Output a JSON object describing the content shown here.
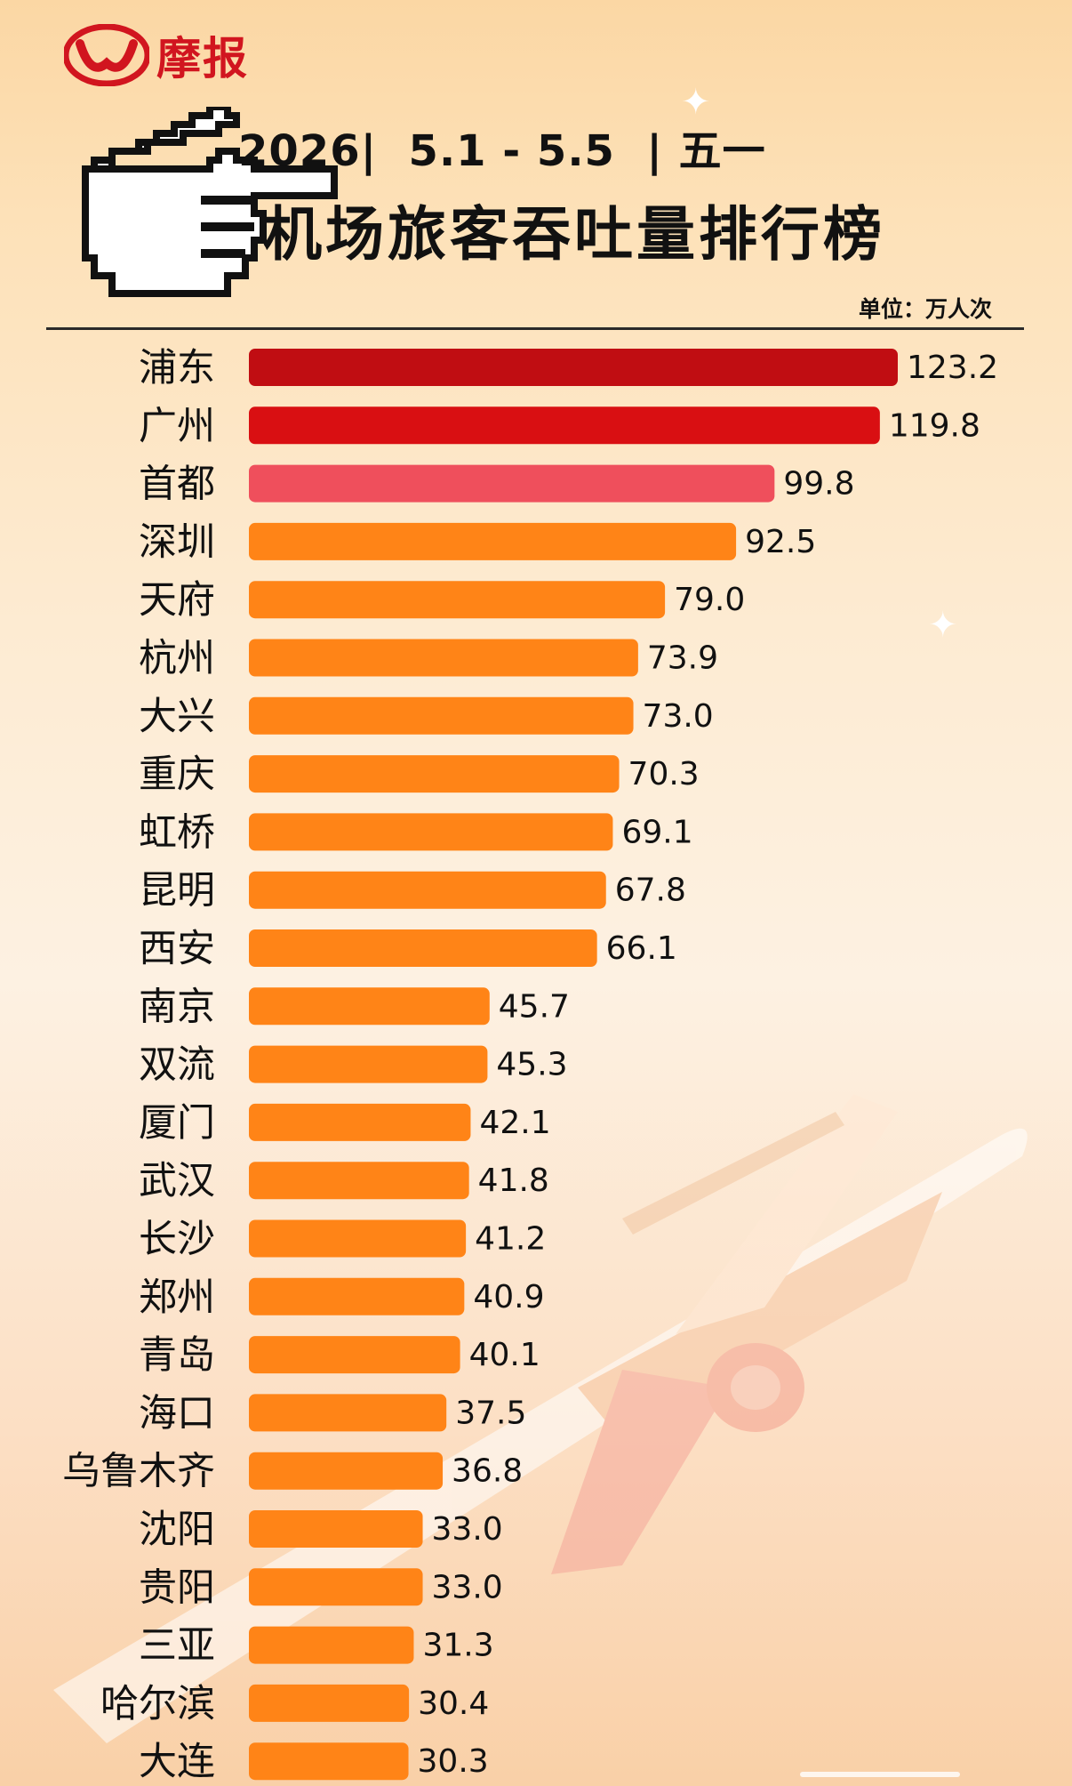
{
  "brand": {
    "name": "摩报"
  },
  "header": {
    "line1": "2026|  5.1 - 5.5  | 五一",
    "line2": "机场旅客吞吐量排行榜",
    "unit": "单位：万人次"
  },
  "colors": {
    "top1": "#c00d12",
    "top2": "#d90f12",
    "top3": "#ef4f5c",
    "rest": "#ff8417",
    "brand": "#d1151f"
  },
  "chart_data": {
    "type": "bar",
    "orientation": "horizontal",
    "categories": [
      "浦东",
      "广州",
      "首都",
      "深圳",
      "天府",
      "杭州",
      "大兴",
      "重庆",
      "虹桥",
      "昆明",
      "西安",
      "南京",
      "双流",
      "厦门",
      "武汉",
      "长沙",
      "郑州",
      "青岛",
      "海口",
      "乌鲁木齐",
      "沈阳",
      "贵阳",
      "三亚",
      "哈尔滨",
      "大连"
    ],
    "values": [
      123.2,
      119.8,
      99.8,
      92.5,
      79.0,
      73.9,
      73.0,
      70.3,
      69.1,
      67.8,
      66.1,
      45.7,
      45.3,
      42.1,
      41.8,
      41.2,
      40.9,
      40.1,
      37.5,
      36.8,
      33.0,
      33.0,
      31.3,
      30.4,
      30.3
    ],
    "value_labels": [
      "123.2",
      "119.8",
      "99.8",
      "92.5",
      "79.0",
      "73.9",
      "73.0",
      "70.3",
      "69.1",
      "67.8",
      "66.1",
      "45.7",
      "45.3",
      "42.1",
      "41.8",
      "41.2",
      "40.9",
      "40.1",
      "37.5",
      "36.8",
      "33.0",
      "33.0",
      "31.3",
      "30.4",
      "30.3"
    ],
    "unit": "万人次",
    "xlim": [
      0,
      123.2
    ],
    "grid": false,
    "legend": "none"
  }
}
